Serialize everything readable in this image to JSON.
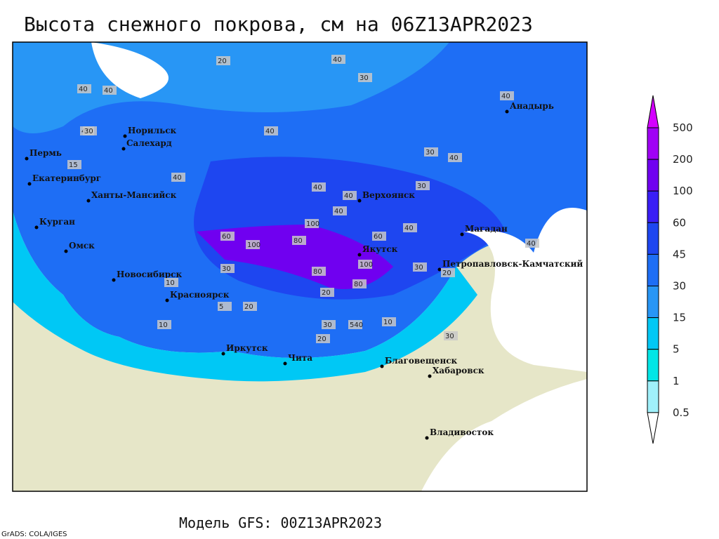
{
  "title": "Высота снежного покрова, см на 06Z13APR2023",
  "footer": "Модель GFS: 00Z13APR2023",
  "credit": "GrADS: COLA/IGES",
  "cities": [
    "Норильск",
    "Салехард",
    "Пермь",
    "Екатеринбург",
    "Ханты-Мансийск",
    "Курган",
    "Омск",
    "Новосибирск",
    "Красноярск",
    "Иркутск",
    "Чита",
    "Благовещенск",
    "Хабаровск",
    "Владивосток",
    "Верхоянск",
    "Якутск",
    "Магадан",
    "Петропавловск-Камчатский",
    "Анадырь"
  ],
  "contour_labels": [
    40,
    30,
    20,
    40,
    40,
    40,
    40,
    30,
    40,
    40,
    40,
    40,
    100,
    60,
    100,
    80,
    80,
    100,
    80,
    40,
    60,
    30,
    20,
    40,
    20,
    30,
    30,
    540,
    20,
    10,
    30,
    30,
    20,
    10,
    5,
    10,
    15,
    30,
    40,
    40
  ],
  "colorbar": {
    "levels": [
      500,
      200,
      100,
      60,
      45,
      30,
      15,
      5,
      1,
      0.5
    ],
    "colors": [
      "#d400ff",
      "#a000f5",
      "#7000f0",
      "#3a1ef5",
      "#1e46f0",
      "#1e6ef5",
      "#2896f5",
      "#00c8f5",
      "#00e6e6",
      "#a0f0fa",
      "#ffffff"
    ]
  }
}
